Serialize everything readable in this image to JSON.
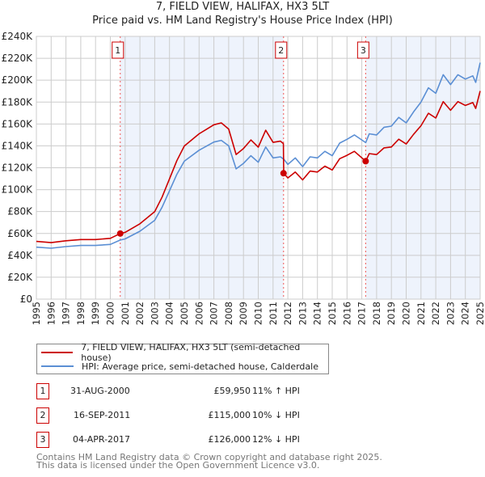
{
  "header": {
    "title": "7, FIELD VIEW, HALIFAX, HX3 5LT",
    "subtitle": "Price paid vs. HM Land Registry's House Price Index (HPI)"
  },
  "chart_data": {
    "type": "line",
    "title": "7, FIELD VIEW, HALIFAX, HX3 5LT",
    "subtitle": "Price paid vs. HM Land Registry's House Price Index (HPI)",
    "xlim": [
      1995,
      2025
    ],
    "ylim": [
      0,
      240000
    ],
    "y_ticks": [
      {
        "v": 0,
        "label": "£0"
      },
      {
        "v": 20000,
        "label": "£20K"
      },
      {
        "v": 40000,
        "label": "£40K"
      },
      {
        "v": 60000,
        "label": "£60K"
      },
      {
        "v": 80000,
        "label": "£80K"
      },
      {
        "v": 100000,
        "label": "£100K"
      },
      {
        "v": 120000,
        "label": "£120K"
      },
      {
        "v": 140000,
        "label": "£140K"
      },
      {
        "v": 160000,
        "label": "£160K"
      },
      {
        "v": 180000,
        "label": "£180K"
      },
      {
        "v": 200000,
        "label": "£200K"
      },
      {
        "v": 220000,
        "label": "£220K"
      },
      {
        "v": 240000,
        "label": "£240K"
      }
    ],
    "x_ticks": [
      "1995",
      "1996",
      "1997",
      "1998",
      "1999",
      "2000",
      "2001",
      "2002",
      "2003",
      "2004",
      "2005",
      "2006",
      "2007",
      "2008",
      "2009",
      "2010",
      "2011",
      "2012",
      "2013",
      "2014",
      "2015",
      "2016",
      "2017",
      "2018",
      "2019",
      "2020",
      "2021",
      "2022",
      "2023",
      "2024",
      "2025"
    ],
    "grid": true,
    "colors": {
      "property": "#cc0000",
      "hpi": "#5b8fd4",
      "shade": "#eef3fc",
      "grid": "#cccccc"
    },
    "x": [
      1995,
      1996,
      1997,
      1998,
      1999,
      2000,
      2000.67,
      2001,
      2002,
      2003,
      2003.5,
      2004,
      2004.5,
      2005,
      2006,
      2007,
      2007.5,
      2008,
      2008.5,
      2009,
      2009.5,
      2010,
      2010.5,
      2011,
      2011.5,
      2011.7,
      2011.72,
      2012,
      2012.5,
      2013,
      2013.5,
      2014,
      2014.5,
      2015,
      2015.5,
      2016,
      2016.5,
      2017.26,
      2017.5,
      2018,
      2018.5,
      2019,
      2019.5,
      2020,
      2020.5,
      2021,
      2021.5,
      2022,
      2022.5,
      2023,
      2023.5,
      2024,
      2024.5,
      2024.7,
      2025
    ],
    "series": [
      {
        "name": "7, FIELD VIEW, HALIFAX, HX3 5LT (semi-detached house)",
        "color": "#cc0000",
        "values": [
          52700,
          51600,
          53300,
          54400,
          54400,
          55500,
          59950,
          61000,
          68800,
          79900,
          93200,
          109900,
          126500,
          139900,
          151000,
          159300,
          161000,
          155400,
          132100,
          137600,
          145400,
          138800,
          154300,
          143200,
          144300,
          142000,
          115000,
          110700,
          116100,
          108900,
          117000,
          116100,
          121500,
          117900,
          128300,
          131400,
          135000,
          126000,
          132900,
          132000,
          138200,
          139000,
          146100,
          141700,
          150500,
          158400,
          169800,
          165400,
          180400,
          172500,
          180400,
          176900,
          179500,
          174200,
          190100
        ]
      },
      {
        "name": "HPI: Average price, semi-detached house, Calderdale",
        "color": "#5b8fd4",
        "values": [
          47500,
          46500,
          48000,
          49000,
          49000,
          50000,
          54000,
          55000,
          62000,
          72000,
          84000,
          99000,
          114000,
          126000,
          136000,
          143500,
          145000,
          140000,
          119000,
          124000,
          131000,
          125000,
          139000,
          129000,
          130000,
          128000,
          128000,
          123000,
          129000,
          121000,
          130000,
          129000,
          135000,
          131000,
          142500,
          146000,
          150000,
          143000,
          151000,
          150000,
          157000,
          158000,
          166000,
          161000,
          171000,
          180000,
          193000,
          188000,
          205000,
          196000,
          205000,
          201000,
          204000,
          198000,
          216000
        ]
      }
    ],
    "sales": [
      {
        "num": "1",
        "date": "31-AUG-2000",
        "year": 2000.67,
        "price": "£59,950",
        "value": 59950,
        "hpi": "11% ↑ HPI"
      },
      {
        "num": "2",
        "date": "16-SEP-2011",
        "year": 2011.71,
        "price": "£115,000",
        "value": 115000,
        "hpi": "10% ↓ HPI"
      },
      {
        "num": "3",
        "date": "04-APR-2017",
        "year": 2017.26,
        "price": "£126,000",
        "value": 126000,
        "hpi": "12% ↓ HPI"
      }
    ],
    "legend": {
      "placement": "below",
      "items": [
        "7, FIELD VIEW, HALIFAX, HX3 5LT (semi-detached house)",
        "HPI: Average price, semi-detached house, Calderdale"
      ]
    }
  },
  "footer": {
    "line1": "Contains HM Land Registry data © Crown copyright and database right 2025.",
    "line2": "This data is licensed under the Open Government Licence v3.0."
  }
}
